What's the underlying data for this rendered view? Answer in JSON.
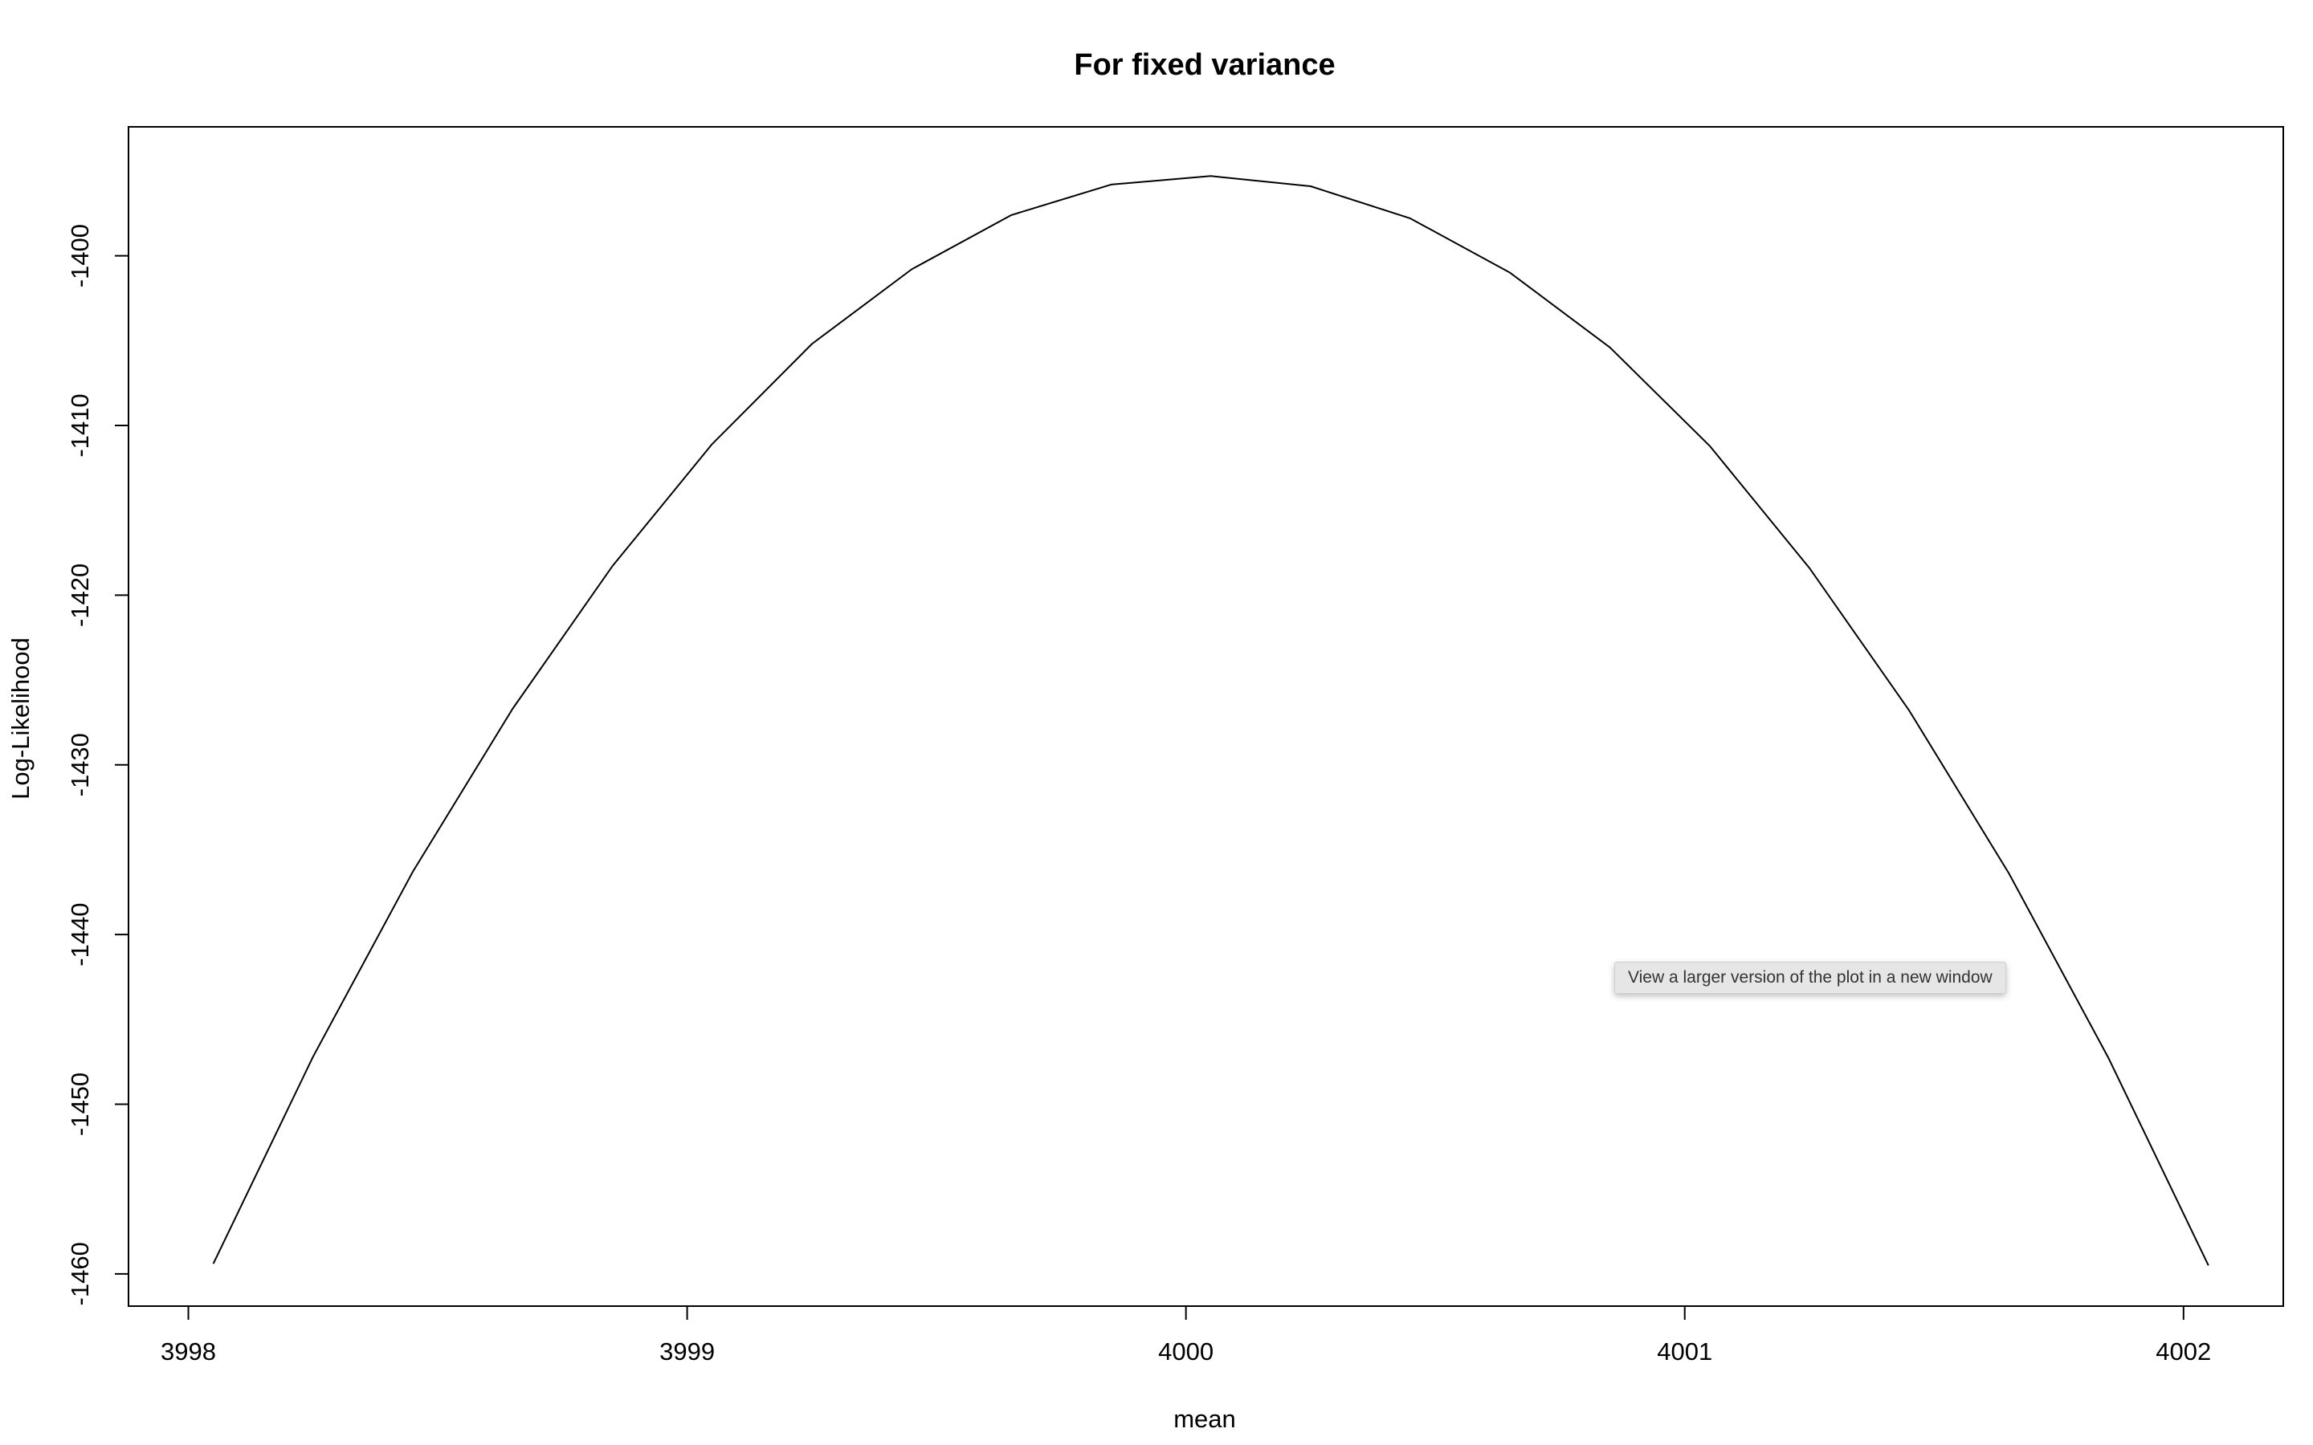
{
  "chart_data": {
    "type": "line",
    "title": "For fixed variance",
    "xlabel": "mean",
    "ylabel": "Log-Likelihood",
    "xlim": [
      3997.88,
      4002.2
    ],
    "ylim": [
      -1461.9,
      -1392.4
    ],
    "xticks": [
      3998,
      3999,
      4000,
      4001,
      4002
    ],
    "yticks": [
      -1400,
      -1410,
      -1420,
      -1430,
      -1440,
      -1450,
      -1460
    ],
    "grid": false,
    "series": [
      {
        "x": [
          3998.05,
          3998.25,
          3998.45,
          3998.65,
          3998.85,
          3999.05,
          3999.25,
          3999.45,
          3999.65,
          3999.85,
          4000.05,
          4000.25,
          4000.45,
          4000.65,
          4000.85,
          4001.05,
          4001.25,
          4001.45,
          4001.65,
          4001.85,
          4002.05
        ],
        "y": [
          -1459.4,
          -1447.2,
          -1436.3,
          -1426.7,
          -1418.3,
          -1411.1,
          -1405.2,
          -1400.8,
          -1397.6,
          -1395.8,
          -1395.3,
          -1395.9,
          -1397.8,
          -1401.0,
          -1405.4,
          -1411.2,
          -1418.4,
          -1426.8,
          -1436.4,
          -1447.3,
          -1459.5
        ]
      }
    ]
  },
  "tooltip": {
    "text": "View a larger version of the plot in a new window"
  }
}
